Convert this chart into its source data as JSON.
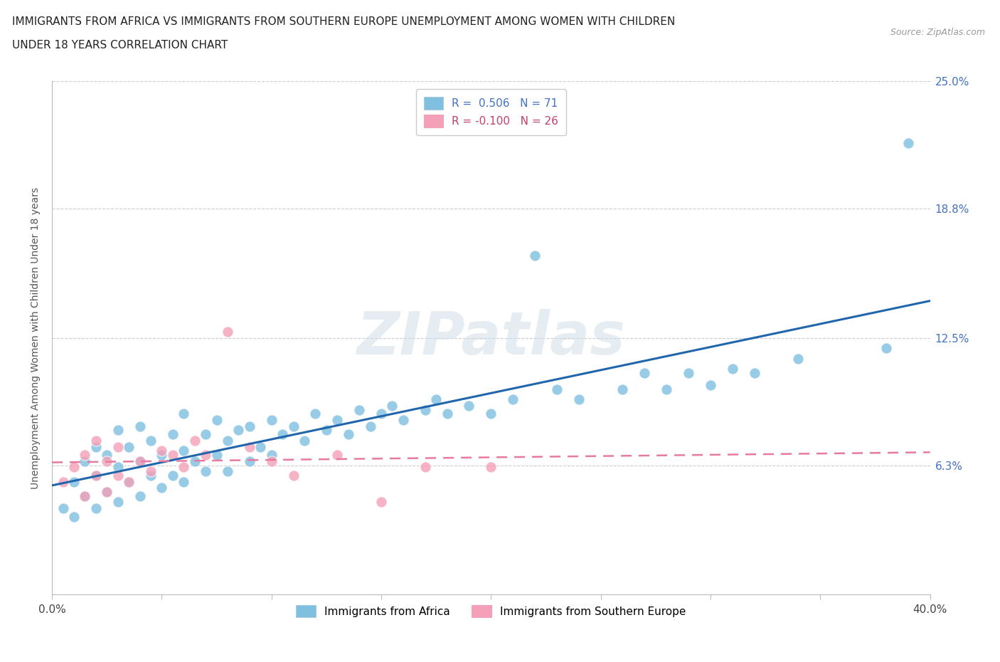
{
  "title_line1": "IMMIGRANTS FROM AFRICA VS IMMIGRANTS FROM SOUTHERN EUROPE UNEMPLOYMENT AMONG WOMEN WITH CHILDREN",
  "title_line2": "UNDER 18 YEARS CORRELATION CHART",
  "source_text": "Source: ZipAtlas.com",
  "ylabel": "Unemployment Among Women with Children Under 18 years",
  "xlim": [
    0.0,
    0.4
  ],
  "ylim": [
    0.0,
    0.25
  ],
  "ytick_labels": [
    "6.3%",
    "12.5%",
    "18.8%",
    "25.0%"
  ],
  "ytick_values": [
    0.063,
    0.125,
    0.188,
    0.25
  ],
  "legend_r1": "R =  0.506   N = 71",
  "legend_r2": "R = -0.100   N = 26",
  "blue_color": "#7fbfdf",
  "pink_color": "#f4a0b8",
  "blue_line_color": "#2166ac",
  "pink_line_color": "#e87aa0",
  "grid_color": "#cccccc",
  "watermark": "ZIPatlas",
  "africa_x": [
    0.005,
    0.01,
    0.01,
    0.015,
    0.015,
    0.02,
    0.02,
    0.02,
    0.025,
    0.025,
    0.03,
    0.03,
    0.03,
    0.035,
    0.035,
    0.04,
    0.04,
    0.04,
    0.045,
    0.045,
    0.05,
    0.05,
    0.055,
    0.055,
    0.06,
    0.06,
    0.06,
    0.065,
    0.07,
    0.07,
    0.075,
    0.075,
    0.08,
    0.08,
    0.085,
    0.09,
    0.09,
    0.095,
    0.1,
    0.1,
    0.105,
    0.11,
    0.115,
    0.12,
    0.125,
    0.13,
    0.135,
    0.14,
    0.145,
    0.15,
    0.155,
    0.16,
    0.17,
    0.175,
    0.18,
    0.19,
    0.2,
    0.21,
    0.22,
    0.23,
    0.24,
    0.26,
    0.27,
    0.28,
    0.29,
    0.3,
    0.31,
    0.32,
    0.34,
    0.38,
    0.39
  ],
  "africa_y": [
    0.042,
    0.038,
    0.055,
    0.048,
    0.065,
    0.042,
    0.058,
    0.072,
    0.05,
    0.068,
    0.045,
    0.062,
    0.08,
    0.055,
    0.072,
    0.048,
    0.065,
    0.082,
    0.058,
    0.075,
    0.052,
    0.068,
    0.058,
    0.078,
    0.055,
    0.07,
    0.088,
    0.065,
    0.06,
    0.078,
    0.068,
    0.085,
    0.06,
    0.075,
    0.08,
    0.065,
    0.082,
    0.072,
    0.068,
    0.085,
    0.078,
    0.082,
    0.075,
    0.088,
    0.08,
    0.085,
    0.078,
    0.09,
    0.082,
    0.088,
    0.092,
    0.085,
    0.09,
    0.095,
    0.088,
    0.092,
    0.088,
    0.095,
    0.165,
    0.1,
    0.095,
    0.1,
    0.108,
    0.1,
    0.108,
    0.102,
    0.11,
    0.108,
    0.115,
    0.12,
    0.22
  ],
  "europe_x": [
    0.005,
    0.01,
    0.015,
    0.015,
    0.02,
    0.02,
    0.025,
    0.025,
    0.03,
    0.03,
    0.035,
    0.04,
    0.045,
    0.05,
    0.055,
    0.06,
    0.065,
    0.07,
    0.08,
    0.09,
    0.1,
    0.11,
    0.13,
    0.15,
    0.17,
    0.2
  ],
  "europe_y": [
    0.055,
    0.062,
    0.048,
    0.068,
    0.058,
    0.075,
    0.05,
    0.065,
    0.058,
    0.072,
    0.055,
    0.065,
    0.06,
    0.07,
    0.068,
    0.062,
    0.075,
    0.068,
    0.128,
    0.072,
    0.065,
    0.058,
    0.068,
    0.045,
    0.062,
    0.062
  ]
}
